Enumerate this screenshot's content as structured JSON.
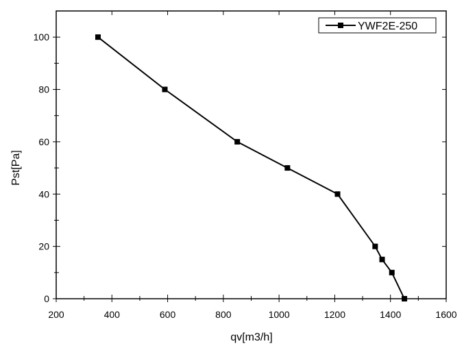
{
  "chart_data": {
    "type": "line",
    "title": "",
    "xlabel": "qv[m3/h]",
    "ylabel": "Pst[Pa]",
    "xlim": [
      200,
      1600
    ],
    "ylim": [
      0,
      110
    ],
    "x_ticks": [
      200,
      400,
      600,
      800,
      1000,
      1200,
      1400,
      1600
    ],
    "y_ticks": [
      0,
      20,
      40,
      60,
      80,
      100
    ],
    "grid": false,
    "legend_position": "top-right",
    "series": [
      {
        "name": "YWF2E-250",
        "color": "#000000",
        "marker": "square",
        "x": [
          350,
          590,
          850,
          1030,
          1210,
          1345,
          1370,
          1405,
          1450
        ],
        "y": [
          100,
          80,
          60,
          50,
          40,
          20,
          15,
          10,
          0
        ]
      }
    ]
  }
}
